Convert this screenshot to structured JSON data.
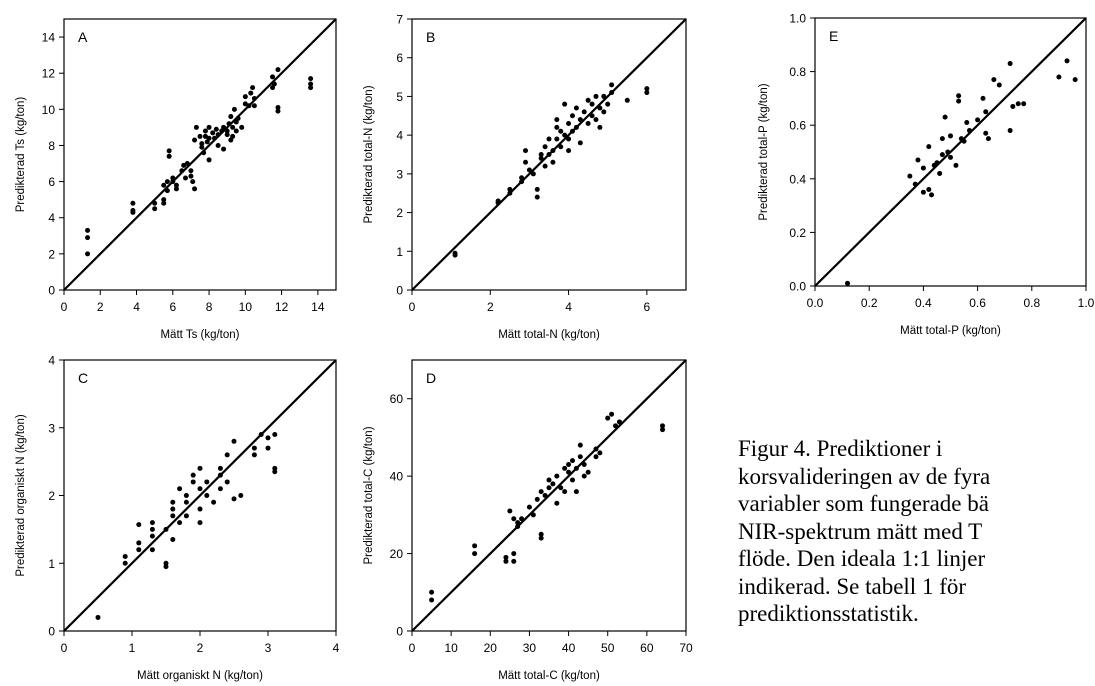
{
  "chart_data": [
    {
      "panel": "A",
      "type": "scatter",
      "xlabel": "Mätt Ts (kg/ton)",
      "ylabel": "Predikterad Ts (kg/ton)",
      "xlim": [
        0,
        15
      ],
      "ylim": [
        0,
        15
      ],
      "xticks": [
        0,
        2,
        4,
        6,
        8,
        10,
        12,
        14
      ],
      "yticks": [
        0,
        2,
        4,
        6,
        8,
        10,
        12,
        14
      ],
      "reference_line": "1:1",
      "points": [
        [
          1.3,
          3.3
        ],
        [
          1.3,
          2.9
        ],
        [
          1.3,
          2.0
        ],
        [
          3.8,
          4.8
        ],
        [
          3.8,
          4.4
        ],
        [
          3.8,
          4.3
        ],
        [
          5.0,
          4.8
        ],
        [
          5.0,
          4.5
        ],
        [
          5.5,
          5.8
        ],
        [
          5.5,
          5.0
        ],
        [
          5.5,
          4.8
        ],
        [
          5.7,
          6.0
        ],
        [
          5.7,
          5.5
        ],
        [
          5.8,
          7.7
        ],
        [
          5.8,
          7.4
        ],
        [
          6.0,
          6.2
        ],
        [
          6.0,
          6.0
        ],
        [
          6.2,
          5.8
        ],
        [
          6.2,
          5.6
        ],
        [
          6.5,
          6.6
        ],
        [
          6.6,
          6.9
        ],
        [
          6.7,
          6.2
        ],
        [
          6.8,
          7.0
        ],
        [
          7.0,
          6.6
        ],
        [
          7.0,
          6.3
        ],
        [
          7.1,
          6.0
        ],
        [
          7.2,
          5.6
        ],
        [
          7.2,
          8.3
        ],
        [
          7.3,
          9.0
        ],
        [
          7.5,
          8.5
        ],
        [
          7.6,
          8.1
        ],
        [
          7.6,
          7.9
        ],
        [
          7.7,
          7.6
        ],
        [
          7.8,
          8.8
        ],
        [
          7.8,
          8.5
        ],
        [
          7.9,
          8.2
        ],
        [
          8.0,
          9.0
        ],
        [
          8.0,
          8.4
        ],
        [
          8.0,
          7.2
        ],
        [
          8.2,
          8.7
        ],
        [
          8.3,
          8.4
        ],
        [
          8.4,
          8.9
        ],
        [
          8.5,
          8.6
        ],
        [
          8.5,
          8.0
        ],
        [
          8.7,
          8.8
        ],
        [
          8.8,
          9.0
        ],
        [
          8.8,
          7.8
        ],
        [
          9.0,
          8.8
        ],
        [
          9.0,
          8.6
        ],
        [
          9.1,
          9.2
        ],
        [
          9.2,
          9.6
        ],
        [
          9.2,
          8.3
        ],
        [
          9.3,
          9.0
        ],
        [
          9.3,
          8.5
        ],
        [
          9.4,
          10.0
        ],
        [
          9.5,
          9.3
        ],
        [
          9.5,
          8.8
        ],
        [
          9.6,
          9.5
        ],
        [
          9.8,
          9.0
        ],
        [
          10.0,
          10.3
        ],
        [
          10.0,
          10.7
        ],
        [
          10.2,
          10.2
        ],
        [
          10.3,
          10.9
        ],
        [
          10.4,
          11.2
        ],
        [
          10.5,
          10.6
        ],
        [
          10.5,
          10.2
        ],
        [
          11.5,
          11.8
        ],
        [
          11.5,
          11.2
        ],
        [
          11.6,
          11.4
        ],
        [
          11.8,
          12.2
        ],
        [
          11.8,
          10.1
        ],
        [
          11.8,
          9.9
        ],
        [
          13.6,
          11.7
        ],
        [
          13.6,
          11.4
        ],
        [
          13.6,
          11.2
        ]
      ]
    },
    {
      "panel": "B",
      "type": "scatter",
      "xlabel": "Mätt total-N (kg/ton)",
      "ylabel": "Predikterad total-N (kg/ton)",
      "xlim": [
        0,
        7
      ],
      "ylim": [
        0,
        7
      ],
      "xticks": [
        0,
        2,
        4,
        6
      ],
      "yticks": [
        0,
        1,
        2,
        3,
        4,
        5,
        6,
        7
      ],
      "reference_line": "1:1",
      "points": [
        [
          1.1,
          0.95
        ],
        [
          1.1,
          0.9
        ],
        [
          2.2,
          2.3
        ],
        [
          2.2,
          2.25
        ],
        [
          2.5,
          2.6
        ],
        [
          2.5,
          2.5
        ],
        [
          2.8,
          2.9
        ],
        [
          2.8,
          2.8
        ],
        [
          2.9,
          3.3
        ],
        [
          2.9,
          3.6
        ],
        [
          3.0,
          3.1
        ],
        [
          3.1,
          3.0
        ],
        [
          3.2,
          2.4
        ],
        [
          3.2,
          2.6
        ],
        [
          3.3,
          3.4
        ],
        [
          3.3,
          3.5
        ],
        [
          3.4,
          3.2
        ],
        [
          3.4,
          3.7
        ],
        [
          3.5,
          3.9
        ],
        [
          3.5,
          3.5
        ],
        [
          3.6,
          3.6
        ],
        [
          3.6,
          3.3
        ],
        [
          3.7,
          4.4
        ],
        [
          3.7,
          4.2
        ],
        [
          3.7,
          3.9
        ],
        [
          3.8,
          4.1
        ],
        [
          3.8,
          3.7
        ],
        [
          3.9,
          4.8
        ],
        [
          3.9,
          4.0
        ],
        [
          4.0,
          3.6
        ],
        [
          4.0,
          4.3
        ],
        [
          4.0,
          3.9
        ],
        [
          4.1,
          4.5
        ],
        [
          4.1,
          4.1
        ],
        [
          4.2,
          4.7
        ],
        [
          4.2,
          4.2
        ],
        [
          4.3,
          4.4
        ],
        [
          4.3,
          3.8
        ],
        [
          4.4,
          4.6
        ],
        [
          4.5,
          4.9
        ],
        [
          4.5,
          4.3
        ],
        [
          4.6,
          4.5
        ],
        [
          4.6,
          4.8
        ],
        [
          4.7,
          4.4
        ],
        [
          4.7,
          5.0
        ],
        [
          4.8,
          4.7
        ],
        [
          4.8,
          4.2
        ],
        [
          4.9,
          5.0
        ],
        [
          4.9,
          4.6
        ],
        [
          5.0,
          4.8
        ],
        [
          5.1,
          5.3
        ],
        [
          5.1,
          5.1
        ],
        [
          5.5,
          4.9
        ],
        [
          6.0,
          5.2
        ],
        [
          6.0,
          5.1
        ]
      ]
    },
    {
      "panel": "C",
      "type": "scatter",
      "xlabel": "Mätt organiskt N (kg/ton)",
      "ylabel": "Predikterad organiskt N (kg/ton)",
      "xlim": [
        0,
        4
      ],
      "ylim": [
        0,
        4
      ],
      "xticks": [
        0,
        1,
        2,
        3,
        4
      ],
      "yticks": [
        0,
        1,
        2,
        3,
        4
      ],
      "reference_line": "1:1",
      "points": [
        [
          0.5,
          0.2
        ],
        [
          0.9,
          1.0
        ],
        [
          0.9,
          1.1
        ],
        [
          1.1,
          1.3
        ],
        [
          1.1,
          1.2
        ],
        [
          1.1,
          1.57
        ],
        [
          1.3,
          1.4
        ],
        [
          1.3,
          1.5
        ],
        [
          1.3,
          1.6
        ],
        [
          1.3,
          1.2
        ],
        [
          1.5,
          1.5
        ],
        [
          1.5,
          1.0
        ],
        [
          1.5,
          0.95
        ],
        [
          1.6,
          1.7
        ],
        [
          1.6,
          1.8
        ],
        [
          1.6,
          1.9
        ],
        [
          1.6,
          1.35
        ],
        [
          1.7,
          1.6
        ],
        [
          1.7,
          2.1
        ],
        [
          1.8,
          1.7
        ],
        [
          1.8,
          2.0
        ],
        [
          1.8,
          1.9
        ],
        [
          1.9,
          2.2
        ],
        [
          1.9,
          2.3
        ],
        [
          2.0,
          2.1
        ],
        [
          2.0,
          2.4
        ],
        [
          2.0,
          1.8
        ],
        [
          2.0,
          1.6
        ],
        [
          2.1,
          2.2
        ],
        [
          2.1,
          2.0
        ],
        [
          2.2,
          1.9
        ],
        [
          2.3,
          2.1
        ],
        [
          2.3,
          2.3
        ],
        [
          2.3,
          2.4
        ],
        [
          2.4,
          2.6
        ],
        [
          2.4,
          2.2
        ],
        [
          2.5,
          2.8
        ],
        [
          2.5,
          1.95
        ],
        [
          2.6,
          2.0
        ],
        [
          2.8,
          2.7
        ],
        [
          2.8,
          2.6
        ],
        [
          2.9,
          2.9
        ],
        [
          3.0,
          2.85
        ],
        [
          3.0,
          2.7
        ],
        [
          3.1,
          2.9
        ],
        [
          3.1,
          2.4
        ],
        [
          3.1,
          2.35
        ]
      ]
    },
    {
      "panel": "D",
      "type": "scatter",
      "xlabel": "Mätt total-C (kg/ton)",
      "ylabel": "Predikterad total-C (kg/ton)",
      "xlim": [
        0,
        70
      ],
      "ylim": [
        0,
        70
      ],
      "xticks": [
        0,
        10,
        20,
        30,
        40,
        50,
        60,
        70
      ],
      "yticks": [
        0,
        20,
        40,
        60
      ],
      "reference_line": "1:1",
      "points": [
        [
          5,
          10
        ],
        [
          5,
          8
        ],
        [
          16,
          22
        ],
        [
          16,
          20
        ],
        [
          24,
          18
        ],
        [
          24,
          19
        ],
        [
          25,
          31
        ],
        [
          26,
          29
        ],
        [
          26,
          20
        ],
        [
          26,
          18
        ],
        [
          27,
          28
        ],
        [
          27,
          27
        ],
        [
          28,
          29
        ],
        [
          30,
          32
        ],
        [
          31,
          30
        ],
        [
          32,
          34
        ],
        [
          33,
          36
        ],
        [
          33,
          25
        ],
        [
          33,
          24
        ],
        [
          34,
          35
        ],
        [
          35,
          37
        ],
        [
          35,
          39
        ],
        [
          36,
          38
        ],
        [
          37,
          33
        ],
        [
          37,
          40
        ],
        [
          38,
          37
        ],
        [
          39,
          42
        ],
        [
          39,
          36
        ],
        [
          40,
          41
        ],
        [
          40,
          43
        ],
        [
          41,
          39
        ],
        [
          41,
          44
        ],
        [
          42,
          42
        ],
        [
          42,
          36
        ],
        [
          43,
          45
        ],
        [
          43,
          48
        ],
        [
          44,
          43
        ],
        [
          44,
          40
        ],
        [
          45,
          41
        ],
        [
          47,
          47
        ],
        [
          47,
          45
        ],
        [
          48,
          46
        ],
        [
          50,
          55
        ],
        [
          51,
          56
        ],
        [
          52,
          53
        ],
        [
          53,
          54
        ],
        [
          64,
          53
        ],
        [
          64,
          52
        ]
      ]
    },
    {
      "panel": "E",
      "type": "scatter",
      "xlabel": "Mätt total-P (kg/ton)",
      "ylabel": "Predikterad total-P (kg/ton)",
      "xlim": [
        0.0,
        1.0
      ],
      "ylim": [
        0.0,
        1.0
      ],
      "xticks": [
        "0.0",
        "0.2",
        "0.4",
        "0.6",
        "0.8",
        "1.0"
      ],
      "yticks": [
        "0.0",
        "0.2",
        "0.4",
        "0.6",
        "0.8",
        "1.0"
      ],
      "reference_line": "1:1",
      "points": [
        [
          0.12,
          0.01
        ],
        [
          0.35,
          0.41
        ],
        [
          0.37,
          0.38
        ],
        [
          0.38,
          0.47
        ],
        [
          0.4,
          0.44
        ],
        [
          0.4,
          0.35
        ],
        [
          0.42,
          0.52
        ],
        [
          0.42,
          0.36
        ],
        [
          0.43,
          0.34
        ],
        [
          0.44,
          0.45
        ],
        [
          0.45,
          0.46
        ],
        [
          0.46,
          0.42
        ],
        [
          0.47,
          0.55
        ],
        [
          0.47,
          0.49
        ],
        [
          0.48,
          0.63
        ],
        [
          0.49,
          0.5
        ],
        [
          0.5,
          0.48
        ],
        [
          0.5,
          0.56
        ],
        [
          0.52,
          0.45
        ],
        [
          0.53,
          0.71
        ],
        [
          0.53,
          0.69
        ],
        [
          0.54,
          0.55
        ],
        [
          0.55,
          0.54
        ],
        [
          0.56,
          0.61
        ],
        [
          0.57,
          0.58
        ],
        [
          0.6,
          0.62
        ],
        [
          0.62,
          0.7
        ],
        [
          0.63,
          0.65
        ],
        [
          0.63,
          0.57
        ],
        [
          0.64,
          0.55
        ],
        [
          0.66,
          0.77
        ],
        [
          0.68,
          0.75
        ],
        [
          0.72,
          0.83
        ],
        [
          0.72,
          0.58
        ],
        [
          0.73,
          0.67
        ],
        [
          0.75,
          0.68
        ],
        [
          0.77,
          0.68
        ],
        [
          0.9,
          0.78
        ],
        [
          0.93,
          0.84
        ],
        [
          0.96,
          0.77
        ]
      ]
    }
  ],
  "panel_labels": [
    "A",
    "B",
    "C",
    "D",
    "E"
  ],
  "caption_lines": [
    "Figur 4. Prediktioner i",
    "korsvalideringen av de fyra",
    "variabler som fungerade bä",
    "NIR-spektrum mätt med T",
    "flöde. Den ideala 1:1 linjer",
    "indikerad. Se tabell 1 för",
    "prediktionsstatistik."
  ]
}
